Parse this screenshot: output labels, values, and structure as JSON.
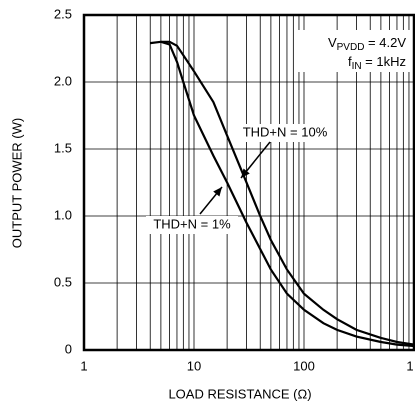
{
  "chart_data": {
    "type": "line",
    "x_label": "LOAD RESISTANCE (Ω)",
    "y_label": "OUTPUT POWER (W)",
    "xscale": "log",
    "xlim": [
      1,
      1000
    ],
    "xticks": [
      1,
      10,
      100,
      {
        "value": 1000,
        "label": "1"
      }
    ],
    "ylim": [
      0,
      2.5
    ],
    "yticks": [
      {
        "value": 0,
        "label": "0"
      },
      0.5,
      {
        "value": 1,
        "label": "1.0"
      },
      1.5,
      {
        "value": 2,
        "label": "2.0"
      },
      2.5
    ],
    "grid": true,
    "conditions": [
      {
        "main": "V",
        "sub": "PVDD",
        "rest": " = 4.2V"
      },
      {
        "main": "f",
        "sub": "IN",
        "rest": " = 1kHz"
      }
    ],
    "series": [
      {
        "name": "THD+N = 10%",
        "color": "#000000",
        "x": [
          4,
          5,
          6,
          7,
          8,
          10,
          15,
          20,
          30,
          40,
          50,
          70,
          100,
          150,
          200,
          300,
          500,
          700,
          1000
        ],
        "values": [
          2.29,
          2.3,
          2.3,
          2.27,
          2.2,
          2.08,
          1.85,
          1.6,
          1.25,
          1.0,
          0.82,
          0.6,
          0.42,
          0.3,
          0.23,
          0.15,
          0.09,
          0.06,
          0.04
        ]
      },
      {
        "name": "THD+N = 1%",
        "color": "#000000",
        "x": [
          5,
          6,
          7,
          8,
          10,
          15,
          20,
          30,
          50,
          70,
          100,
          150,
          200,
          300,
          500,
          700,
          1000
        ],
        "values": [
          2.3,
          2.28,
          2.15,
          2.0,
          1.75,
          1.45,
          1.25,
          0.95,
          0.6,
          0.42,
          0.3,
          0.2,
          0.15,
          0.1,
          0.06,
          0.04,
          0.03
        ]
      }
    ]
  }
}
